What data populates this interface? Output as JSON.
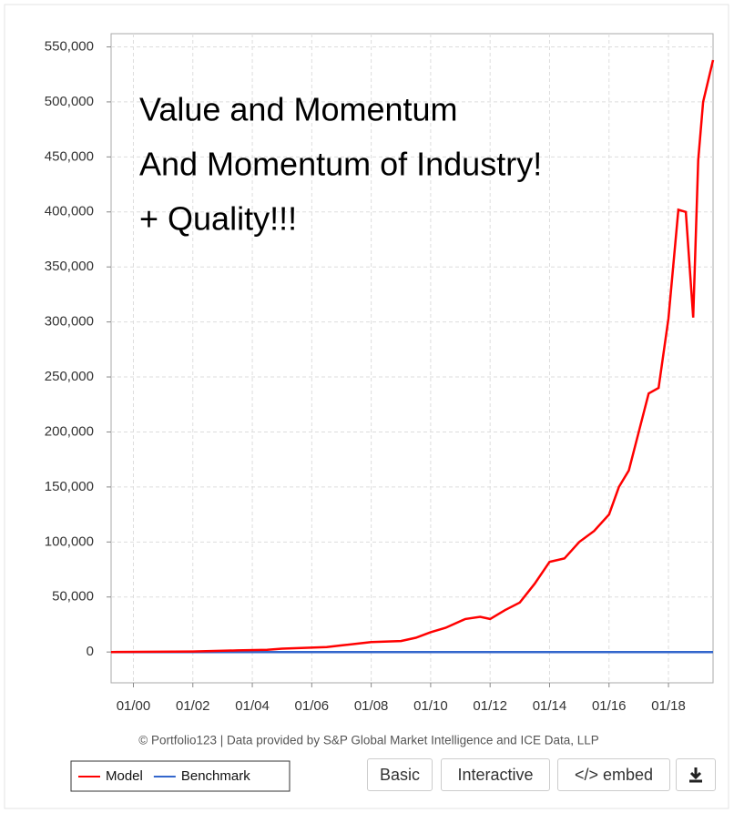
{
  "chart_data": {
    "type": "line",
    "annotations": [
      "Value and Momentum",
      "And Momentum of Industry!",
      "+ Quality!!!"
    ],
    "x": [
      "1999-04",
      "2002-01",
      "2003-07",
      "2004-07",
      "2005-01",
      "2006-07",
      "2007-01",
      "2008-01",
      "2009-01",
      "2009-07",
      "2010-01",
      "2010-07",
      "2011-03",
      "2011-09",
      "2012-01",
      "2012-07",
      "2013-01",
      "2013-07",
      "2014-01",
      "2014-07",
      "2015-01",
      "2015-07",
      "2016-01",
      "2016-05",
      "2016-09",
      "2017-01",
      "2017-05",
      "2017-09",
      "2018-01",
      "2018-05",
      "2018-08",
      "2018-11",
      "2019-01",
      "2019-03",
      "2019-07"
    ],
    "series": [
      {
        "name": "Model",
        "color": "#ff0000",
        "values": [
          0,
          500,
          1500,
          2000,
          3000,
          4500,
          6000,
          9000,
          10000,
          13000,
          18000,
          22000,
          30000,
          32000,
          30000,
          38000,
          45000,
          62000,
          82000,
          85000,
          100000,
          110000,
          125000,
          150000,
          165000,
          200000,
          235000,
          240000,
          303000,
          402000,
          400000,
          304000,
          447000,
          500000,
          538000
        ]
      },
      {
        "name": "Benchmark",
        "color": "#3366cc",
        "values": [
          0,
          0,
          0,
          0,
          0,
          0,
          0,
          0,
          0,
          0,
          0,
          0,
          0,
          0,
          0,
          0,
          0,
          0,
          0,
          0,
          0,
          0,
          0,
          0,
          0,
          0,
          0,
          0,
          0,
          0,
          0,
          0,
          0,
          0,
          0
        ]
      }
    ],
    "xlim": [
      "1999-04",
      "2019-07"
    ],
    "xticks": [
      {
        "value": "2000-01",
        "label": "01/00"
      },
      {
        "value": "2002-01",
        "label": "01/02"
      },
      {
        "value": "2004-01",
        "label": "01/04"
      },
      {
        "value": "2006-01",
        "label": "01/06"
      },
      {
        "value": "2008-01",
        "label": "01/08"
      },
      {
        "value": "2010-01",
        "label": "01/10"
      },
      {
        "value": "2012-01",
        "label": "01/12"
      },
      {
        "value": "2014-01",
        "label": "01/14"
      },
      {
        "value": "2016-01",
        "label": "01/16"
      },
      {
        "value": "2018-01",
        "label": "01/18"
      }
    ],
    "ylim": [
      -28000,
      562000
    ],
    "yticks": [
      0,
      {
        "value": 50000,
        "label": "50,000"
      },
      {
        "value": 100000,
        "label": "100,000"
      },
      {
        "value": 150000,
        "label": "150,000"
      },
      {
        "value": 200000,
        "label": "200,000"
      },
      {
        "value": 250000,
        "label": "250,000"
      },
      {
        "value": 300000,
        "label": "300,000"
      },
      {
        "value": 350000,
        "label": "350,000"
      },
      {
        "value": 400000,
        "label": "400,000"
      },
      {
        "value": 450000,
        "label": "450,000"
      },
      {
        "value": 500000,
        "label": "500,000"
      },
      {
        "value": 550000,
        "label": "550,000"
      }
    ],
    "grid": true,
    "source": "© Portfolio123 | Data provided by S&P Global Market Intelligence and ICE Data, LLP"
  },
  "buttons": [
    "Basic",
    "Interactive",
    "</> embed"
  ]
}
